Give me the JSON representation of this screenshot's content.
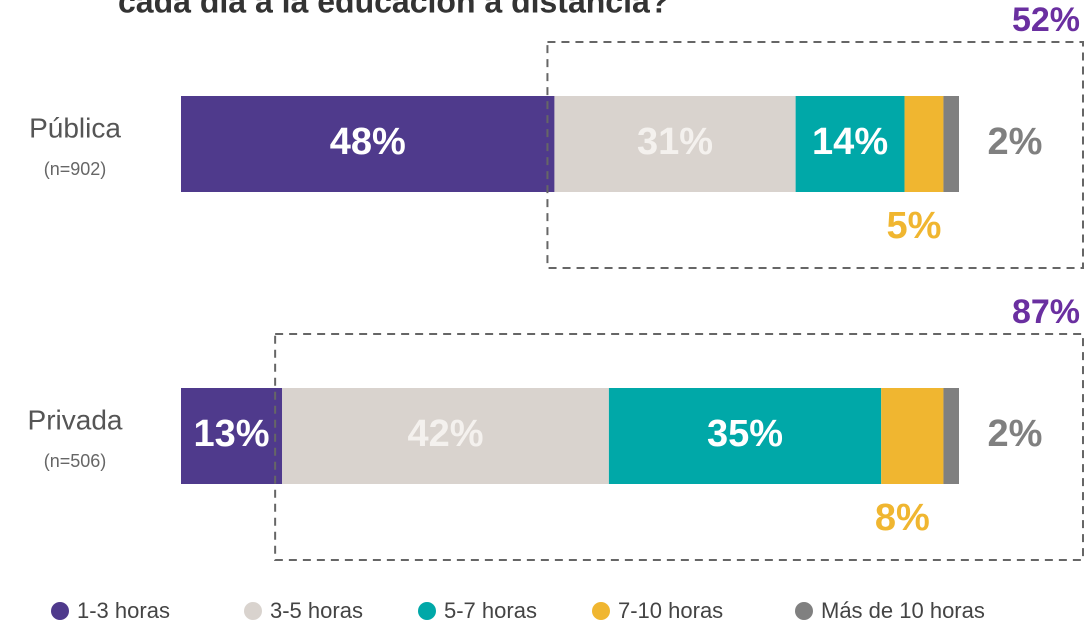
{
  "chart_data": {
    "type": "stacked-bar-horizontal",
    "title": "cada día a la educación a distancia?",
    "categories": [
      "Pública",
      "Privada"
    ],
    "category_notes": [
      "(n=902)",
      "(n=506)"
    ],
    "xlim": [
      0,
      100
    ],
    "series": [
      {
        "name": "1-3 horas",
        "color": "#4f3a8c",
        "values": [
          48,
          13
        ],
        "value_labels": [
          "48%",
          "13%"
        ]
      },
      {
        "name": "3-5 horas",
        "color": "#d9d3ce",
        "values": [
          31,
          42
        ],
        "value_labels": [
          "31%",
          "42%"
        ]
      },
      {
        "name": "5-7 horas",
        "color": "#00a8a8",
        "values": [
          14,
          35
        ],
        "value_labels": [
          "14%",
          "35%"
        ]
      },
      {
        "name": "7-10 horas",
        "color": "#f0b630",
        "values": [
          5,
          8
        ],
        "value_labels": [
          "5%",
          "8%"
        ]
      },
      {
        "name": "Más de 10 horas",
        "color": "#808080",
        "values": [
          2,
          2
        ],
        "value_labels": [
          "2%",
          "2%"
        ]
      }
    ],
    "annotations": [
      {
        "value": 52,
        "label": "52%"
      },
      {
        "value": 87,
        "label": "87%"
      }
    ],
    "annotation_color": "#6a2fa0",
    "legend": "bottom"
  }
}
